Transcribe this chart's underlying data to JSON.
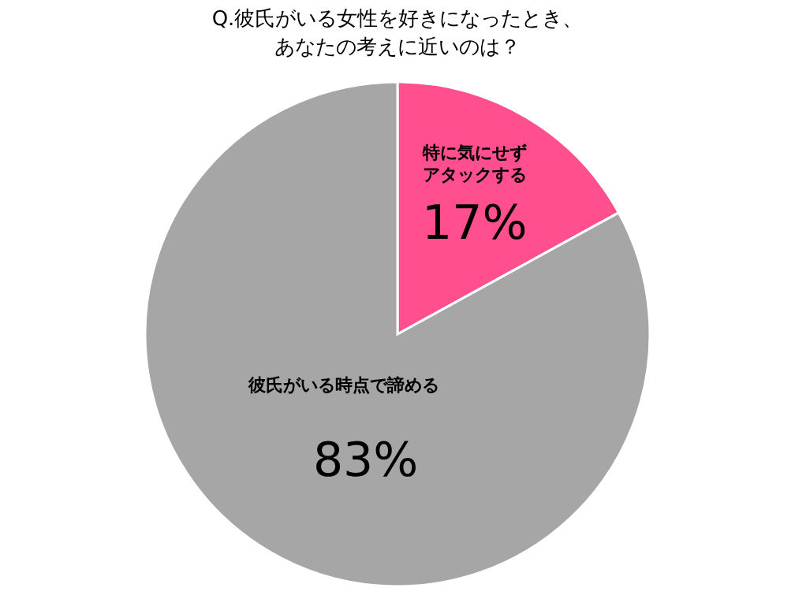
{
  "chart_data": {
    "type": "pie",
    "title": "Q.彼氏がいる女性を好きになったとき、あなたの考えに近いのは？",
    "categories": [
      "特に気にせずアタックする",
      "彼氏がいる時点で諦める"
    ],
    "values": [
      17,
      83
    ],
    "colors": [
      "#ff4f8f",
      "#a6a6a6"
    ],
    "value_labels": [
      "17%",
      "83%"
    ]
  }
}
